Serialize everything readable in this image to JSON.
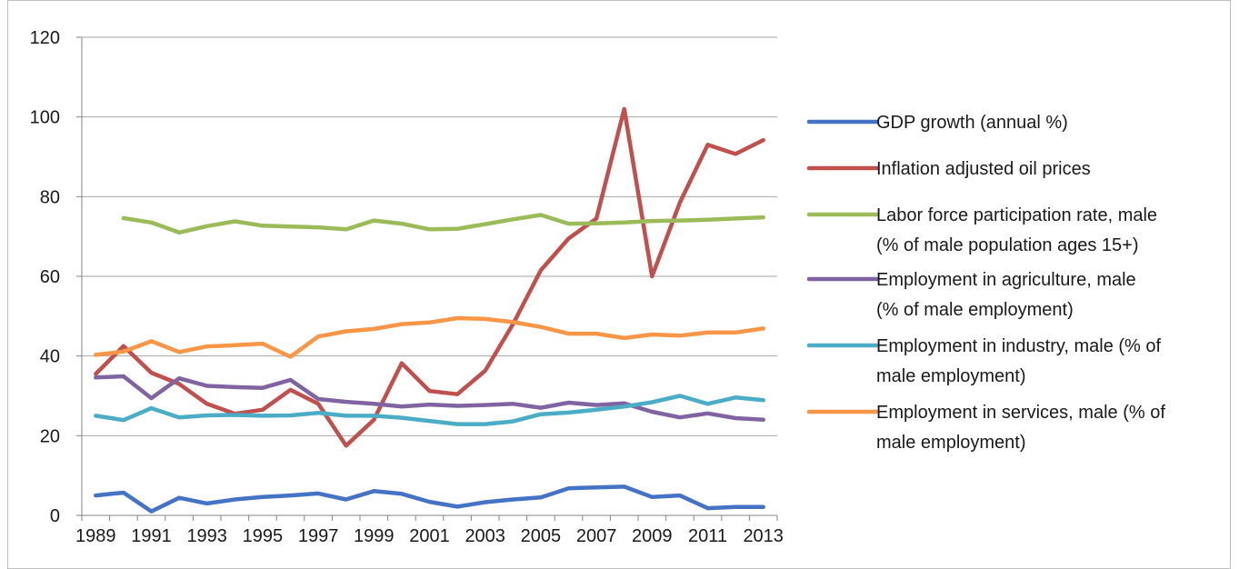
{
  "chart_data": {
    "type": "line",
    "title": "",
    "xlabel": "",
    "ylabel": "",
    "ylim": [
      0,
      120
    ],
    "yticks": [
      0,
      20,
      40,
      60,
      80,
      100,
      120
    ],
    "grid": true,
    "legend_position": "right",
    "x": [
      1989,
      1990,
      1991,
      1992,
      1993,
      1994,
      1995,
      1996,
      1997,
      1998,
      1999,
      2000,
      2001,
      2002,
      2003,
      2004,
      2005,
      2006,
      2007,
      2008,
      2009,
      2010,
      2011,
      2012,
      2013
    ],
    "xtick_labels": [
      "1989",
      "1991",
      "1993",
      "1995",
      "1997",
      "1999",
      "2001",
      "2003",
      "2005",
      "2007",
      "2009",
      "2011",
      "2013"
    ],
    "series": [
      {
        "name": "GDP growth (annual %)",
        "legend_lines": [
          "GDP growth (annual %)"
        ],
        "color": "#4472c4",
        "values": [
          5.0,
          5.7,
          1.0,
          4.4,
          3.0,
          4.0,
          4.6,
          5.0,
          5.5,
          4.0,
          6.1,
          5.4,
          3.4,
          2.2,
          3.3,
          4.0,
          4.5,
          6.8,
          7.0,
          7.2,
          4.6,
          5.0,
          1.8,
          2.1,
          2.1
        ]
      },
      {
        "name": "Inflation adjusted oil prices",
        "legend_lines": [
          "Inflation adjusted oil prices"
        ],
        "color": "#c0504d",
        "values": [
          35.5,
          42.5,
          35.8,
          33.0,
          28.0,
          25.5,
          26.5,
          31.5,
          28.0,
          17.5,
          24.0,
          38.2,
          31.2,
          30.4,
          36.3,
          48.0,
          61.5,
          69.5,
          74.5,
          102.0,
          60.0,
          78.5,
          93.0,
          90.7,
          94.2
        ]
      },
      {
        "name": "Labor force participation rate, male (% of male population ages 15+)",
        "legend_lines": [
          "Labor force participation rate, male",
          "(% of male population ages 15+)"
        ],
        "color": "#9bbb59",
        "values": [
          null,
          74.6,
          73.5,
          71.0,
          72.6,
          73.8,
          72.7,
          72.5,
          72.3,
          71.8,
          74.0,
          73.2,
          71.8,
          71.9,
          73.1,
          74.3,
          75.4,
          73.2,
          73.3,
          73.5,
          73.9,
          74.0,
          74.2,
          74.5,
          74.8
        ]
      },
      {
        "name": "Employment in agriculture, male (% of male employment)",
        "legend_lines": [
          "Employment in agriculture, male",
          "(% of male employment)"
        ],
        "color": "#8064a2",
        "values": [
          34.6,
          34.9,
          29.4,
          34.4,
          32.5,
          32.2,
          32.0,
          34.0,
          29.2,
          28.5,
          28.0,
          27.3,
          27.8,
          27.5,
          27.7,
          28.0,
          27.0,
          28.3,
          27.7,
          28.1,
          26.0,
          24.6,
          25.6,
          24.4,
          24.0
        ]
      },
      {
        "name": "Employment in industry, male (% of male employment)",
        "legend_lines": [
          "Employment in industry, male (% of",
          "male employment)"
        ],
        "color": "#4bacc6",
        "values": [
          25.0,
          23.9,
          26.9,
          24.6,
          25.1,
          25.2,
          25.0,
          25.1,
          25.7,
          25.0,
          25.0,
          24.5,
          23.7,
          22.9,
          22.9,
          23.6,
          25.4,
          25.8,
          26.5,
          27.3,
          28.4,
          30.0,
          28.0,
          29.6,
          28.9
        ]
      },
      {
        "name": "Employment in services, male (% of male employment)",
        "legend_lines": [
          "Employment in services, male (% of",
          "male employment)"
        ],
        "color": "#f79646",
        "values": [
          40.3,
          41.1,
          43.7,
          41.0,
          42.4,
          42.7,
          43.1,
          39.8,
          44.9,
          46.2,
          46.8,
          48.0,
          48.4,
          49.5,
          49.3,
          48.5,
          47.3,
          45.6,
          45.6,
          44.5,
          45.4,
          45.1,
          45.9,
          45.9,
          46.9
        ]
      }
    ]
  }
}
